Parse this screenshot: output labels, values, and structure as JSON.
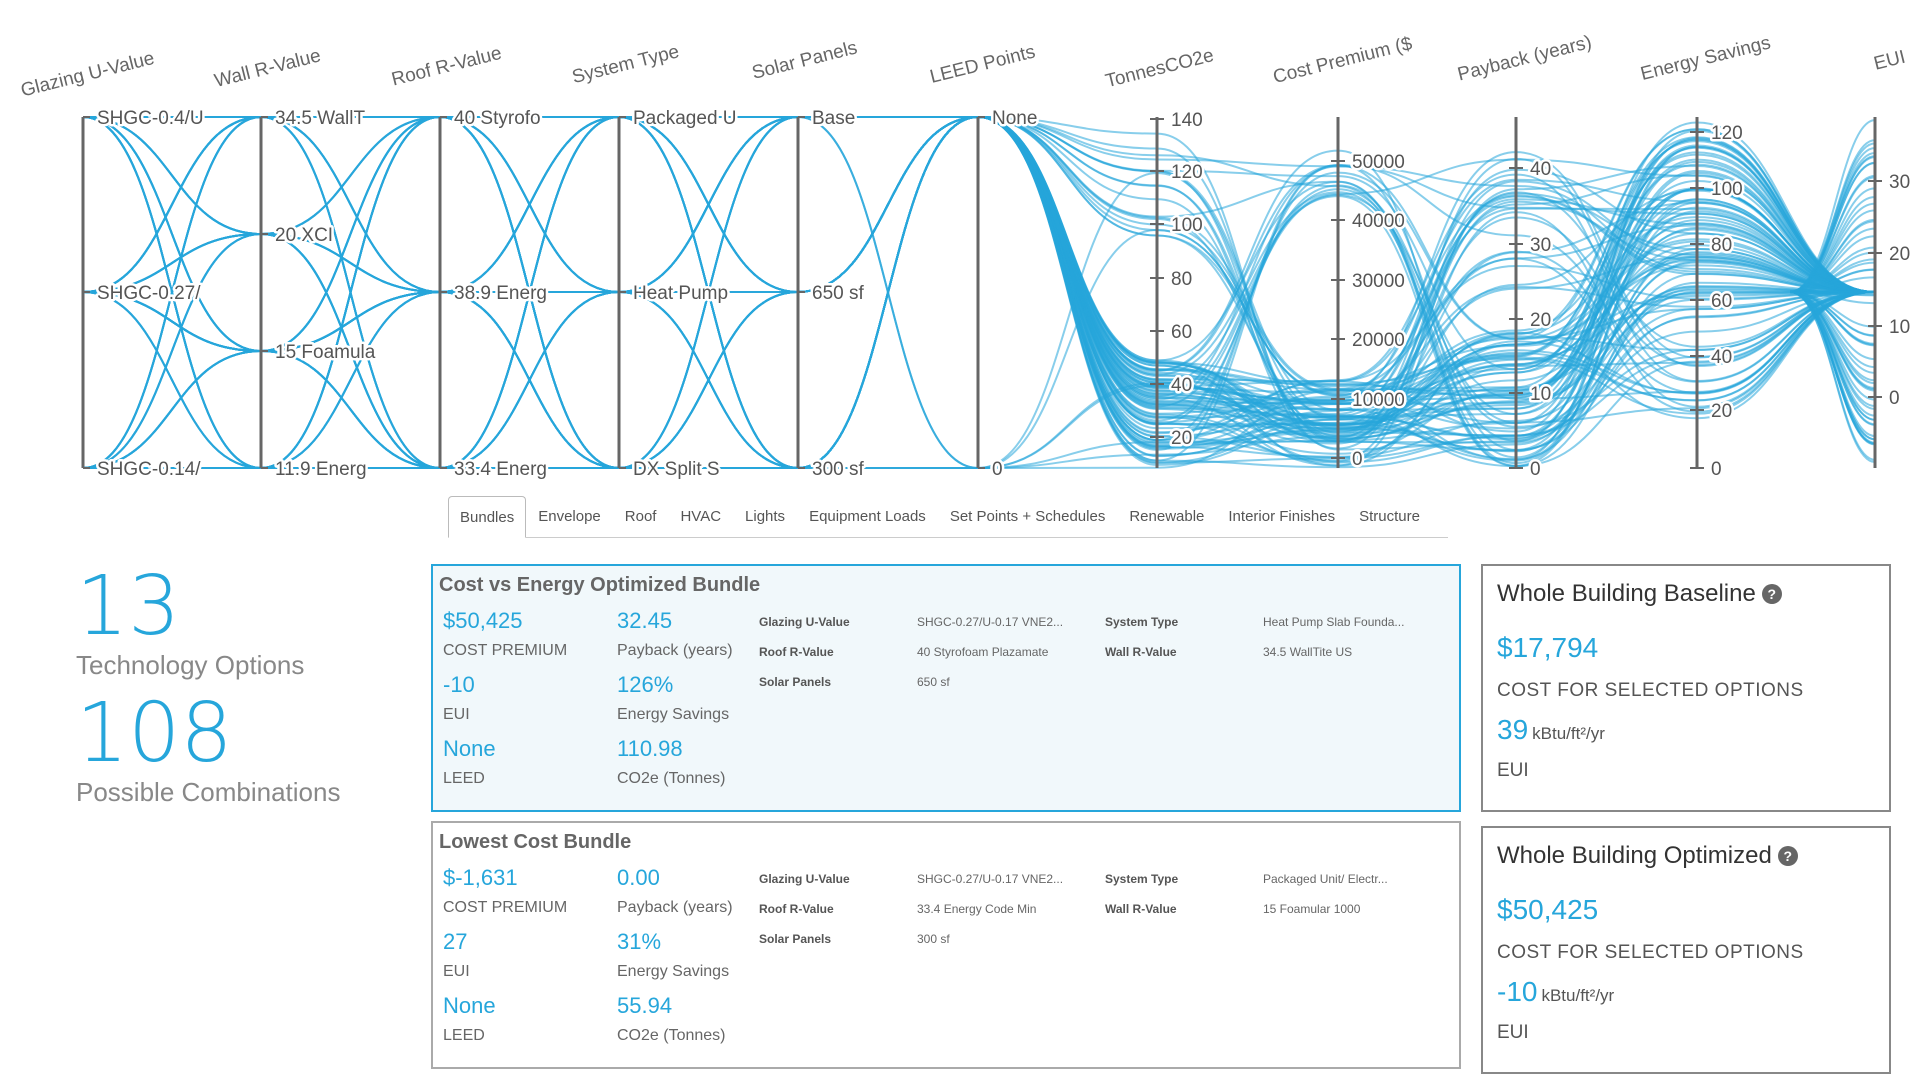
{
  "parallel_coords": {
    "line_color": "#26a6db",
    "axes": [
      {
        "key": "glazing",
        "title": "Glazing U-Value",
        "ticks": [
          "SHGC-0.4/U",
          "SHGC-0.27/",
          "SHGC-0.14/"
        ]
      },
      {
        "key": "wall",
        "title": "Wall R-Value",
        "ticks": [
          "34.5 WallT",
          "20 XCI",
          "15 Foamula",
          "11.9 Energ"
        ]
      },
      {
        "key": "roof",
        "title": "Roof R-Value",
        "ticks": [
          "40 Styrofo",
          "38.9 Energ",
          "33.4 Energ"
        ]
      },
      {
        "key": "system",
        "title": "System Type",
        "ticks": [
          "Packaged U",
          "Heat Pump",
          "DX Split S"
        ]
      },
      {
        "key": "solar",
        "title": "Solar Panels",
        "ticks": [
          "Base",
          "650 sf",
          "300 sf"
        ]
      },
      {
        "key": "leed",
        "title": "LEED Points",
        "ticks": [
          "None",
          "0"
        ]
      },
      {
        "key": "co2",
        "title": "TonnesCO2e",
        "ticks": [
          "140",
          "120",
          "100",
          "80",
          "60",
          "40",
          "20"
        ]
      },
      {
        "key": "cost",
        "title": "Cost Premium ($",
        "ticks": [
          "50000",
          "40000",
          "30000",
          "20000",
          "10000",
          "0"
        ]
      },
      {
        "key": "payback",
        "title": "Payback (years)",
        "ticks": [
          "40",
          "30",
          "20",
          "10",
          "0"
        ]
      },
      {
        "key": "energy",
        "title": "Energy Savings",
        "ticks": [
          "120",
          "100",
          "80",
          "60",
          "40",
          "20",
          "0"
        ]
      },
      {
        "key": "eui",
        "title": "EUI",
        "ticks": [
          "30",
          "20",
          "10",
          "0"
        ]
      }
    ]
  },
  "tabs": [
    "Bundles",
    "Envelope",
    "Roof",
    "HVAC",
    "Lights",
    "Equipment Loads",
    "Set Points + Schedules",
    "Renewable",
    "Interior Finishes",
    "Structure"
  ],
  "stats": [
    {
      "value": "13",
      "label": "Technology Options"
    },
    {
      "value": "108",
      "label": "Possible Combinations"
    }
  ],
  "bundles": [
    {
      "title": "Cost vs Energy Optimized Bundle",
      "metrics": [
        {
          "value": "$50,425",
          "label": "COST PREMIUM"
        },
        {
          "value": "32.45",
          "label": "Payback (years)"
        },
        {
          "value": "-10",
          "label": "EUI"
        },
        {
          "value": "126%",
          "label": "Energy Savings"
        },
        {
          "value": "None",
          "label": "LEED"
        },
        {
          "value": "110.98",
          "label": "CO2e (Tonnes)"
        }
      ],
      "details": [
        {
          "key": "Glazing U-Value",
          "value": "SHGC-0.27/U-0.17 VNE2..."
        },
        {
          "key": "System Type",
          "value": "Heat Pump Slab Founda..."
        },
        {
          "key": "Roof R-Value",
          "value": "40 Styrofoam Plazamate"
        },
        {
          "key": "Wall R-Value",
          "value": "34.5 WallTite US"
        },
        {
          "key": "Solar Panels",
          "value": "650 sf"
        }
      ]
    },
    {
      "title": "Lowest Cost Bundle",
      "metrics": [
        {
          "value": "$-1,631",
          "label": "COST PREMIUM"
        },
        {
          "value": "0.00",
          "label": "Payback (years)"
        },
        {
          "value": "27",
          "label": "EUI"
        },
        {
          "value": "31%",
          "label": "Energy Savings"
        },
        {
          "value": "None",
          "label": "LEED"
        },
        {
          "value": "55.94",
          "label": "CO2e (Tonnes)"
        }
      ],
      "details": [
        {
          "key": "Glazing U-Value",
          "value": "SHGC-0.27/U-0.17 VNE2..."
        },
        {
          "key": "System Type",
          "value": "Packaged Unit/ Electr..."
        },
        {
          "key": "Roof R-Value",
          "value": "33.4 Energy Code Min"
        },
        {
          "key": "Wall R-Value",
          "value": "15 Foamular 1000"
        },
        {
          "key": "Solar Panels",
          "value": "300 sf"
        }
      ]
    }
  ],
  "summaries": [
    {
      "title": "Whole Building Baseline",
      "cost": "$17,794",
      "cost_label": "COST FOR SELECTED OPTIONS",
      "eui": "39",
      "eui_unit": "kBtu/ft²/yr",
      "eui_label": "EUI"
    },
    {
      "title": "Whole Building Optimized",
      "cost": "$50,425",
      "cost_label": "COST FOR SELECTED OPTIONS",
      "eui": "-10",
      "eui_unit": "kBtu/ft²/yr",
      "eui_label": "EUI"
    }
  ],
  "icons": {
    "help": "?"
  }
}
